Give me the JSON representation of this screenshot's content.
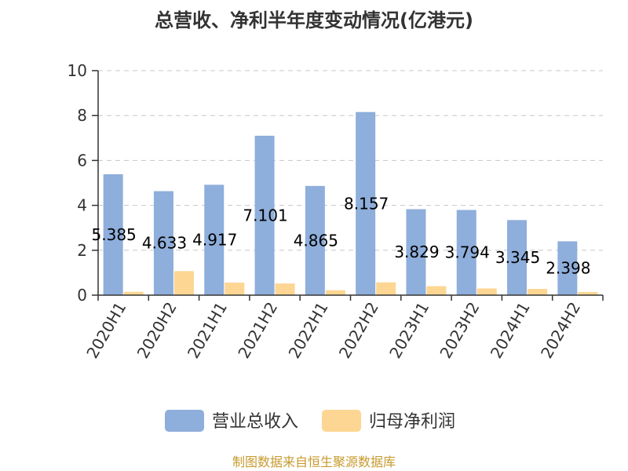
{
  "chart_data": {
    "type": "bar",
    "title": "总营收、净利半年度变动情况(亿港元)",
    "categories": [
      "2020H1",
      "2020H2",
      "2021H1",
      "2021H2",
      "2022H1",
      "2022H2",
      "2023H1",
      "2023H2",
      "2024H1",
      "2024H2"
    ],
    "series": [
      {
        "name": "营业总收入",
        "color": "#8eaedb",
        "values": [
          5.385,
          4.633,
          4.917,
          7.101,
          4.865,
          8.157,
          3.829,
          3.794,
          3.345,
          2.398
        ]
      },
      {
        "name": "归母净利润",
        "color": "#fdd693",
        "values": [
          0.15,
          1.07,
          0.56,
          0.52,
          0.22,
          0.57,
          0.4,
          0.3,
          0.28,
          0.14
        ]
      }
    ],
    "data_labels": [
      "5.385",
      "4.633",
      "4.917",
      "7.101",
      "4.865",
      "8.157",
      "3.829",
      "3.794",
      "3.345",
      "2.398"
    ],
    "yticks": [
      "0",
      "2",
      "4",
      "6",
      "8",
      "10"
    ],
    "ylim": [
      0,
      10
    ],
    "grid": true,
    "legend_position": "bottom"
  },
  "footer": {
    "source": "制图数据来自恒生聚源数据库"
  }
}
